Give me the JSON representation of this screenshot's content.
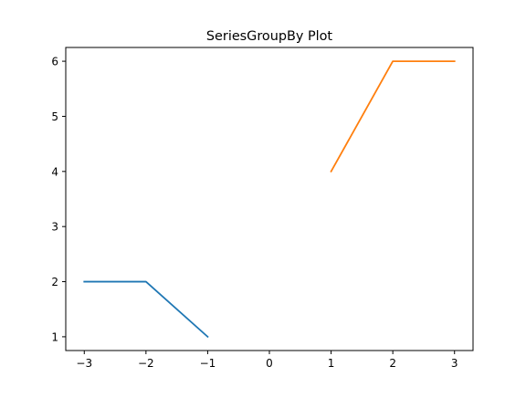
{
  "chart_data": {
    "type": "line",
    "title": "SeriesGroupBy Plot",
    "xlabel": "",
    "ylabel": "",
    "xlim": [
      -3.3,
      3.3
    ],
    "ylim": [
      0.75,
      6.25
    ],
    "x_ticks": [
      -3,
      -2,
      -1,
      0,
      1,
      2,
      3
    ],
    "x_tick_labels": [
      "−3",
      "−2",
      "−1",
      "0",
      "1",
      "2",
      "3"
    ],
    "y_ticks": [
      1,
      2,
      3,
      4,
      5,
      6
    ],
    "y_tick_labels": [
      "1",
      "2",
      "3",
      "4",
      "5",
      "6"
    ],
    "grid": false,
    "legend": "none",
    "series": [
      {
        "color": "#1f77b4",
        "x": [
          -3,
          -2,
          -1
        ],
        "y": [
          2,
          2,
          1
        ]
      },
      {
        "color": "#ff7f0e",
        "x": [
          1,
          2,
          3
        ],
        "y": [
          4,
          6,
          6
        ]
      }
    ]
  }
}
